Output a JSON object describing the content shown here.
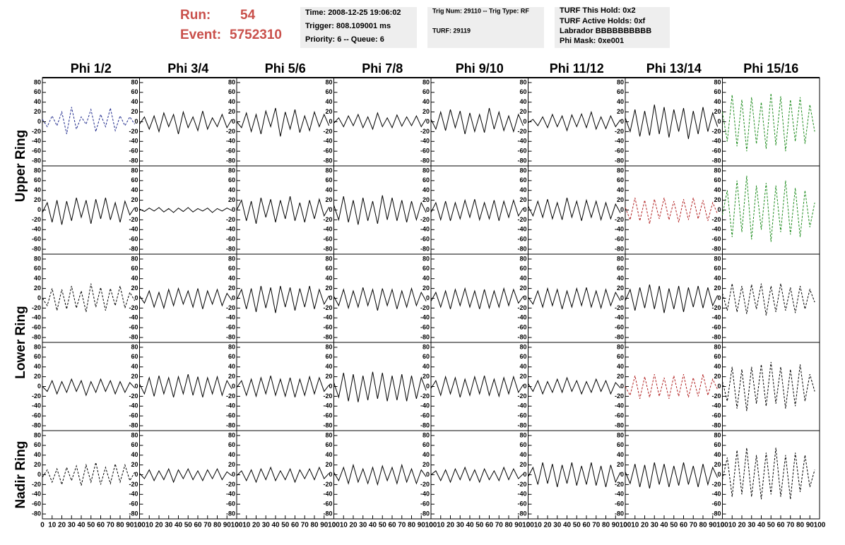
{
  "header": {
    "run_label": "Run:",
    "run": "54",
    "event_label": "Event:",
    "event": "5752310",
    "boxes": [
      [
        "Time: 2008-12-25 19:06:02",
        "Trigger: 808.109001 ms",
        "Priority: 6 -- Queue: 6"
      ],
      [
        "Trig Num: 29110 -- Trig Type: RF",
        "TURF: 29119"
      ],
      [
        "TURF This Hold: 0x2",
        "TURF Active Holds: 0xf",
        "Labrador BBBBBBBBBB",
        "Phi Mask: 0xe001"
      ]
    ]
  },
  "chart_data": {
    "type": "line",
    "columns": [
      "Phi 1/2",
      "Phi 3/4",
      "Phi 5/6",
      "Phi 7/8",
      "Phi 9/10",
      "Phi 11/12",
      "Phi 13/14",
      "Phi 15/16"
    ],
    "row_labels": [
      "Upper Ring",
      "Lower Ring",
      "Nadir Ring"
    ],
    "x": [
      0,
      5,
      10,
      15,
      20,
      25,
      30,
      35,
      40,
      45,
      50,
      55,
      60,
      65,
      70,
      75,
      80,
      85,
      90,
      95
    ],
    "xlim": [
      0,
      100
    ],
    "xticks": [
      0,
      10,
      20,
      30,
      40,
      50,
      60,
      70,
      80,
      90,
      100
    ],
    "ylim": [
      -90,
      90
    ],
    "yticks": [
      -80,
      -60,
      -40,
      -20,
      0,
      20,
      40,
      60,
      80
    ],
    "panels": [
      [
        {
          "color": "#1f2a8c",
          "dashed": true,
          "values": [
            5,
            -10,
            12,
            -8,
            20,
            -25,
            30,
            -15,
            10,
            -5,
            25,
            -20,
            15,
            -10,
            28,
            -18,
            12,
            -8,
            10,
            -5
          ]
        },
        {
          "color": "#000000",
          "values": [
            -5,
            10,
            -15,
            12,
            -20,
            18,
            -10,
            15,
            -25,
            20,
            -12,
            10,
            -18,
            22,
            -15,
            8,
            -10,
            15,
            -12,
            5
          ]
        },
        {
          "color": "#000000",
          "values": [
            0,
            -12,
            18,
            -20,
            15,
            -25,
            22,
            -10,
            28,
            -30,
            20,
            -15,
            25,
            -22,
            12,
            -18,
            20,
            -10,
            15,
            -8
          ]
        },
        {
          "color": "#000000",
          "values": [
            -3,
            8,
            -10,
            12,
            -8,
            15,
            -12,
            10,
            -15,
            18,
            -10,
            8,
            -12,
            14,
            -9,
            10,
            -8,
            12,
            -10,
            6
          ]
        },
        {
          "color": "#000000",
          "values": [
            5,
            -15,
            20,
            -18,
            25,
            -12,
            22,
            -25,
            18,
            -20,
            15,
            -22,
            28,
            -15,
            20,
            -18,
            12,
            -20,
            15,
            -8
          ]
        },
        {
          "color": "#000000",
          "values": [
            -2,
            5,
            -8,
            10,
            -12,
            15,
            -10,
            12,
            -18,
            14,
            -10,
            16,
            -12,
            20,
            -15,
            10,
            -14,
            12,
            -10,
            4
          ]
        },
        {
          "color": "#000000",
          "values": [
            8,
            -20,
            25,
            -30,
            22,
            -28,
            35,
            -25,
            30,
            -32,
            25,
            -20,
            28,
            -35,
            22,
            -25,
            30,
            -20,
            18,
            -10
          ]
        },
        {
          "color": "#1e8c1e",
          "dashed": true,
          "values": [
            20,
            -40,
            55,
            -50,
            45,
            -60,
            50,
            -45,
            40,
            -55,
            58,
            -48,
            52,
            -60,
            45,
            -40,
            50,
            -45,
            35,
            -20
          ]
        }
      ],
      [
        {
          "color": "#000000",
          "values": [
            -5,
            15,
            -25,
            20,
            -30,
            18,
            -22,
            25,
            -15,
            20,
            -28,
            22,
            -18,
            25,
            -20,
            15,
            -25,
            18,
            -10,
            5
          ]
        },
        {
          "color": "#000000",
          "values": [
            2,
            -3,
            4,
            -2,
            5,
            -4,
            3,
            -5,
            4,
            -3,
            5,
            -4,
            3,
            -2,
            4,
            -5,
            3,
            -2,
            4,
            -1
          ]
        },
        {
          "color": "#000000",
          "values": [
            0,
            20,
            -22,
            18,
            -28,
            25,
            -15,
            22,
            -25,
            20,
            -18,
            28,
            -22,
            15,
            -25,
            20,
            -18,
            22,
            -12,
            6
          ]
        },
        {
          "color": "#000000",
          "values": [
            10,
            -20,
            28,
            -25,
            20,
            -30,
            25,
            -22,
            18,
            -28,
            30,
            -20,
            25,
            -22,
            20,
            -25,
            18,
            -20,
            15,
            -5
          ]
        },
        {
          "color": "#000000",
          "values": [
            -5,
            15,
            -20,
            18,
            -22,
            15,
            -18,
            20,
            -15,
            22,
            -20,
            15,
            -18,
            20,
            -22,
            18,
            -15,
            20,
            -12,
            4
          ]
        },
        {
          "color": "#000000",
          "values": [
            8,
            -12,
            18,
            -15,
            22,
            -18,
            15,
            -20,
            25,
            -15,
            18,
            -22,
            20,
            -15,
            18,
            -20,
            15,
            -18,
            12,
            -6
          ]
        },
        {
          "color": "#b22222",
          "dashed": true,
          "values": [
            5,
            -20,
            25,
            -22,
            20,
            -28,
            22,
            -18,
            25,
            -20,
            18,
            -25,
            22,
            -20,
            25,
            -18,
            20,
            -22,
            15,
            -8
          ]
        },
        {
          "color": "#1e8c1e",
          "dashed": true,
          "values": [
            -10,
            40,
            -55,
            60,
            -45,
            70,
            -60,
            50,
            -40,
            55,
            -65,
            50,
            -45,
            60,
            -50,
            45,
            -55,
            40,
            -35,
            15
          ]
        }
      ],
      [
        {
          "color": "#000000",
          "dashed": true,
          "values": [
            0,
            -15,
            20,
            -25,
            18,
            -22,
            25,
            -20,
            15,
            -28,
            30,
            -18,
            22,
            -25,
            20,
            -15,
            25,
            -20,
            12,
            -5
          ]
        },
        {
          "color": "#000000",
          "values": [
            5,
            -10,
            15,
            -18,
            12,
            -20,
            18,
            -15,
            20,
            -12,
            15,
            -18,
            20,
            -22,
            15,
            -12,
            18,
            -15,
            10,
            -4
          ]
        },
        {
          "color": "#000000",
          "values": [
            -3,
            18,
            -22,
            20,
            -28,
            25,
            -20,
            22,
            -30,
            25,
            -18,
            22,
            -25,
            20,
            -18,
            25,
            -22,
            18,
            -12,
            5
          ]
        },
        {
          "color": "#000000",
          "values": [
            4,
            -15,
            18,
            -20,
            15,
            -18,
            22,
            -15,
            18,
            -25,
            20,
            -15,
            18,
            -22,
            15,
            -18,
            20,
            -15,
            12,
            -6
          ]
        },
        {
          "color": "#000000",
          "values": [
            -6,
            12,
            -18,
            15,
            -22,
            18,
            -15,
            20,
            -18,
            15,
            -22,
            18,
            -20,
            15,
            -18,
            20,
            -15,
            18,
            -10,
            4
          ]
        },
        {
          "color": "#000000",
          "values": [
            2,
            -12,
            15,
            -18,
            20,
            -15,
            18,
            -22,
            15,
            -18,
            20,
            -15,
            22,
            -18,
            15,
            -20,
            18,
            -15,
            12,
            -5
          ]
        },
        {
          "color": "#000000",
          "values": [
            -5,
            18,
            -25,
            22,
            -20,
            28,
            -22,
            25,
            -30,
            20,
            -22,
            25,
            -28,
            22,
            -18,
            25,
            -20,
            22,
            -15,
            6
          ]
        },
        {
          "color": "#000000",
          "dashed": true,
          "values": [
            10,
            -25,
            30,
            -28,
            25,
            -32,
            28,
            -22,
            30,
            -35,
            25,
            -28,
            30,
            -25,
            22,
            -30,
            25,
            -22,
            18,
            -8
          ]
        }
      ],
      [
        {
          "color": "#000000",
          "values": [
            0,
            -10,
            12,
            -15,
            10,
            -12,
            15,
            -10,
            12,
            -18,
            10,
            -12,
            15,
            -10,
            12,
            -15,
            10,
            -12,
            8,
            -3
          ]
        },
        {
          "color": "#000000",
          "values": [
            5,
            -15,
            18,
            -20,
            22,
            -15,
            18,
            -22,
            20,
            -15,
            25,
            -18,
            20,
            -22,
            18,
            -15,
            20,
            -18,
            12,
            -5
          ]
        },
        {
          "color": "#000000",
          "values": [
            -2,
            12,
            -18,
            15,
            -20,
            18,
            -15,
            22,
            -18,
            15,
            -20,
            18,
            -22,
            15,
            -18,
            20,
            -15,
            18,
            -10,
            3
          ]
        },
        {
          "color": "#000000",
          "values": [
            8,
            -22,
            28,
            -30,
            25,
            -32,
            22,
            -28,
            30,
            -25,
            28,
            -30,
            22,
            -28,
            25,
            -30,
            22,
            -25,
            18,
            -8
          ]
        },
        {
          "color": "#000000",
          "values": [
            -4,
            12,
            -18,
            20,
            -15,
            18,
            -22,
            15,
            -18,
            20,
            -15,
            22,
            -18,
            15,
            -20,
            18,
            -15,
            20,
            -12,
            4
          ]
        },
        {
          "color": "#000000",
          "values": [
            6,
            -10,
            12,
            -15,
            10,
            -12,
            15,
            -12,
            18,
            -10,
            12,
            -15,
            10,
            -12,
            15,
            -10,
            12,
            -15,
            8,
            -3
          ]
        },
        {
          "color": "#b22222",
          "dashed": true,
          "values": [
            0,
            -18,
            22,
            -25,
            20,
            -22,
            25,
            -20,
            18,
            -25,
            22,
            -20,
            25,
            -22,
            18,
            -20,
            25,
            -18,
            15,
            -6
          ]
        },
        {
          "color": "#000000",
          "dashed": true,
          "values": [
            10,
            -30,
            40,
            -45,
            35,
            -50,
            40,
            -35,
            45,
            -40,
            50,
            -35,
            40,
            -45,
            35,
            -40,
            45,
            -30,
            25,
            -10
          ]
        }
      ],
      [
        {
          "color": "#000000",
          "dashed": true,
          "values": [
            -5,
            10,
            -15,
            12,
            -20,
            15,
            -12,
            18,
            -22,
            20,
            -15,
            25,
            -20,
            15,
            -18,
            22,
            -15,
            20,
            -12,
            5
          ]
        },
        {
          "color": "#000000",
          "values": [
            3,
            -8,
            10,
            -12,
            8,
            -10,
            12,
            -15,
            10,
            -8,
            12,
            -10,
            8,
            -12,
            10,
            -8,
            12,
            -10,
            6,
            -2
          ]
        },
        {
          "color": "#000000",
          "values": [
            -2,
            8,
            -12,
            10,
            -15,
            12,
            -10,
            15,
            -12,
            8,
            -10,
            12,
            -15,
            10,
            -8,
            12,
            -10,
            15,
            -8,
            3
          ]
        },
        {
          "color": "#000000",
          "values": [
            5,
            -12,
            15,
            -18,
            20,
            -15,
            12,
            -18,
            15,
            -20,
            18,
            -12,
            15,
            -18,
            20,
            -15,
            12,
            -18,
            10,
            -4
          ]
        },
        {
          "color": "#000000",
          "values": [
            0,
            8,
            -12,
            10,
            -15,
            12,
            -10,
            15,
            -12,
            10,
            -15,
            12,
            -10,
            8,
            -12,
            15,
            -10,
            12,
            -8,
            2
          ]
        },
        {
          "color": "#000000",
          "values": [
            -4,
            15,
            -20,
            25,
            -18,
            22,
            -25,
            20,
            -18,
            25,
            -22,
            18,
            -20,
            25,
            -22,
            18,
            -25,
            20,
            -15,
            5
          ]
        },
        {
          "color": "#000000",
          "values": [
            6,
            -18,
            22,
            -25,
            20,
            -28,
            25,
            -20,
            22,
            -25,
            18,
            -22,
            25,
            -20,
            18,
            -25,
            22,
            -20,
            15,
            -6
          ]
        },
        {
          "color": "#000000",
          "dashed": true,
          "values": [
            -10,
            35,
            -45,
            50,
            -40,
            55,
            -45,
            40,
            -50,
            45,
            -40,
            55,
            -45,
            40,
            -50,
            45,
            -35,
            40,
            -25,
            10
          ]
        }
      ]
    ]
  }
}
